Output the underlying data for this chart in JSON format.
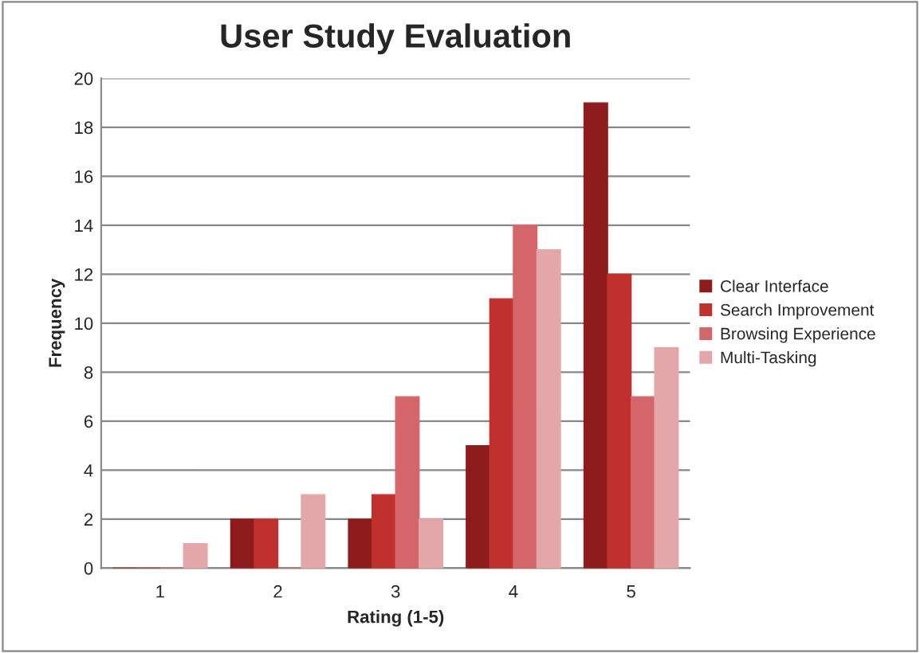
{
  "chart_data": {
    "type": "bar",
    "title": "User Study Evaluation",
    "xlabel": "Rating (1-5)",
    "ylabel": "Frequency",
    "categories": [
      "1",
      "2",
      "3",
      "4",
      "5"
    ],
    "series": [
      {
        "name": "Clear Interface",
        "color": "#8e1c1c",
        "values": [
          0,
          2,
          2,
          5,
          19
        ]
      },
      {
        "name": "Search Improvement",
        "color": "#c0302c",
        "values": [
          0,
          2,
          3,
          11,
          12
        ]
      },
      {
        "name": "Browsing Experience",
        "color": "#d4666a",
        "values": [
          0,
          0,
          7,
          14,
          7
        ]
      },
      {
        "name": "Multi-Tasking",
        "color": "#e4a7a9",
        "values": [
          1,
          3,
          2,
          13,
          9
        ]
      }
    ],
    "ylim": [
      0,
      20
    ],
    "yticks": [
      0,
      2,
      4,
      6,
      8,
      10,
      12,
      14,
      16,
      18,
      20
    ],
    "grid": "y",
    "legend": "right"
  }
}
